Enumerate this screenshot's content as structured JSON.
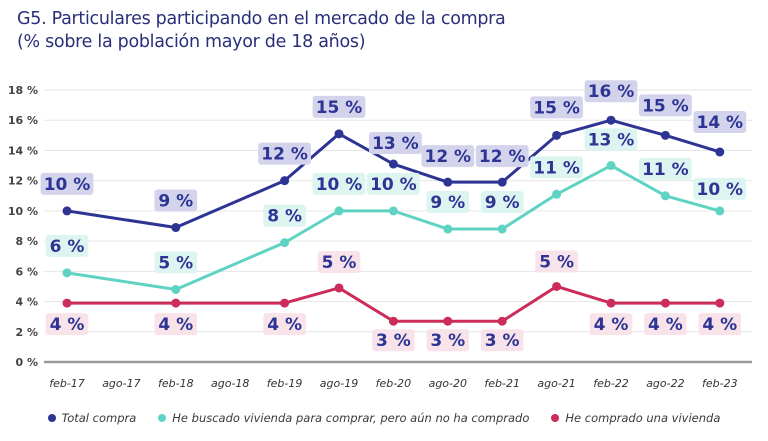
{
  "title": {
    "line1": "G5. Particulares participando en el mercado de la compra",
    "line2": "(% sobre la población mayor de 18 años)"
  },
  "chart_data": {
    "type": "line",
    "title": "G5. Particulares participando en el mercado de la compra (% sobre la población mayor de 18 años)",
    "xlabel": "",
    "ylabel": "",
    "x": [
      "feb-17",
      "ago-17",
      "feb-18",
      "ago-18",
      "feb-19",
      "ago-19",
      "feb-20",
      "ago-20",
      "feb-21",
      "ago-21",
      "feb-22",
      "ago-22",
      "feb-23"
    ],
    "ylim": [
      0,
      18
    ],
    "yticks": [
      0,
      2,
      4,
      6,
      8,
      10,
      12,
      14,
      16,
      18
    ],
    "ytick_labels": [
      "0 %",
      "2 %",
      "4 %",
      "6 %",
      "8 %",
      "10 %",
      "12 %",
      "14 %",
      "16 %",
      "18 %"
    ],
    "grid": true,
    "legend_position": "bottom",
    "series": [
      {
        "name": "Total compra",
        "color": "#2d3494",
        "label_bg": "#d3d4ec",
        "label_position": "above",
        "x": [
          "feb-17",
          "feb-18",
          "feb-19",
          "ago-19",
          "feb-20",
          "ago-20",
          "feb-21",
          "ago-21",
          "feb-22",
          "ago-22",
          "feb-23"
        ],
        "values": [
          10.0,
          8.9,
          12.0,
          15.1,
          13.1,
          11.9,
          11.9,
          15.0,
          16.0,
          15.0,
          13.9
        ],
        "labels": [
          "10 %",
          "9 %",
          "12 %",
          "15 %",
          "13 %",
          "12 %",
          "12 %",
          "15 %",
          "16 %",
          "15 %",
          "14 %"
        ]
      },
      {
        "name": "He buscado vivienda para comprar, pero aún no ha comprado",
        "color": "#5fd3c3",
        "label_bg": "#dcf5f1",
        "label_position": "above",
        "x": [
          "feb-17",
          "feb-18",
          "feb-19",
          "ago-19",
          "feb-20",
          "ago-20",
          "feb-21",
          "ago-21",
          "feb-22",
          "ago-22",
          "feb-23"
        ],
        "values": [
          5.9,
          4.8,
          7.9,
          10.0,
          10.0,
          8.8,
          8.8,
          11.1,
          13.0,
          11.0,
          10.0
        ],
        "labels": [
          "6 %",
          "5 %",
          "8 %",
          "10 %",
          "10 %",
          "9 %",
          "9 %",
          "11 %",
          "13 %",
          "11 %",
          "10 %"
        ]
      },
      {
        "name": "He comprado una vivienda",
        "color": "#cc2c5a",
        "label_bg": "#f8e3ea",
        "label_position": "mixed",
        "x": [
          "feb-17",
          "feb-18",
          "feb-19",
          "ago-19",
          "feb-20",
          "ago-20",
          "feb-21",
          "ago-21",
          "feb-22",
          "ago-22",
          "feb-23"
        ],
        "values": [
          3.9,
          3.9,
          3.9,
          4.9,
          2.7,
          2.7,
          2.7,
          5.0,
          3.9,
          3.9,
          3.9
        ],
        "labels": [
          "4 %",
          "4 %",
          "4 %",
          "5 %",
          "3 %",
          "3 %",
          "3 %",
          "5 %",
          "4 %",
          "4 %",
          "4 %"
        ],
        "label_sides": [
          "below",
          "below",
          "below",
          "above",
          "below",
          "below",
          "below",
          "above",
          "below",
          "below",
          "below"
        ]
      }
    ]
  },
  "colors": {
    "title": "#2b2f7a",
    "label_text": "#2d3494",
    "axis_text": "#444444",
    "grid": "#e6e6e6",
    "baseline": "#9a9a9a"
  }
}
